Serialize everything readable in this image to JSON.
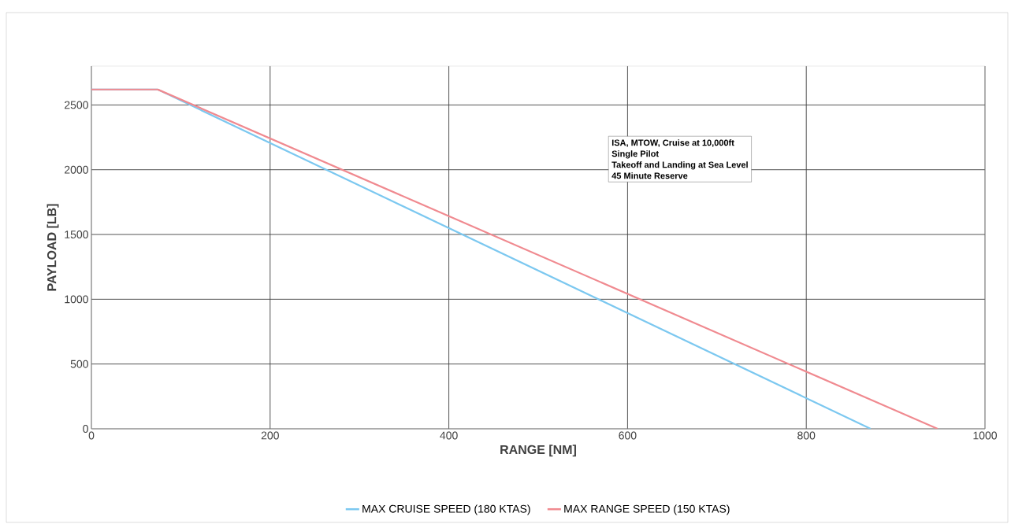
{
  "chart_data": {
    "type": "line",
    "xlabel": "RANGE [NM]",
    "ylabel": "PAYLOAD [LB]",
    "annotations": [
      "ISA, MTOW,  Cruise at 10,000ft",
      "Single Pilot",
      "Takeoff and Landing at Sea Level",
      "45 Minute Reserve"
    ],
    "series": [
      {
        "name": "MAX CRUISE SPEED (180 KTAS)",
        "color": "#7cc8f0",
        "x": [
          0,
          74,
          872
        ],
        "values": [
          2620,
          2620,
          0
        ]
      },
      {
        "name": "MAX RANGE SPEED (150 KTAS)",
        "color": "#f08a90",
        "x": [
          0,
          74,
          947
        ],
        "values": [
          2620,
          2620,
          0
        ]
      }
    ],
    "xlim": [
      0,
      1000
    ],
    "xticks": [
      0,
      200,
      400,
      600,
      800,
      1000
    ],
    "ylim": [
      0,
      2800
    ],
    "yticks": [
      0,
      500,
      1000,
      1500,
      2000,
      2500
    ],
    "grid": true,
    "legend": "bottom",
    "marker": "none",
    "line_style": "solid"
  }
}
